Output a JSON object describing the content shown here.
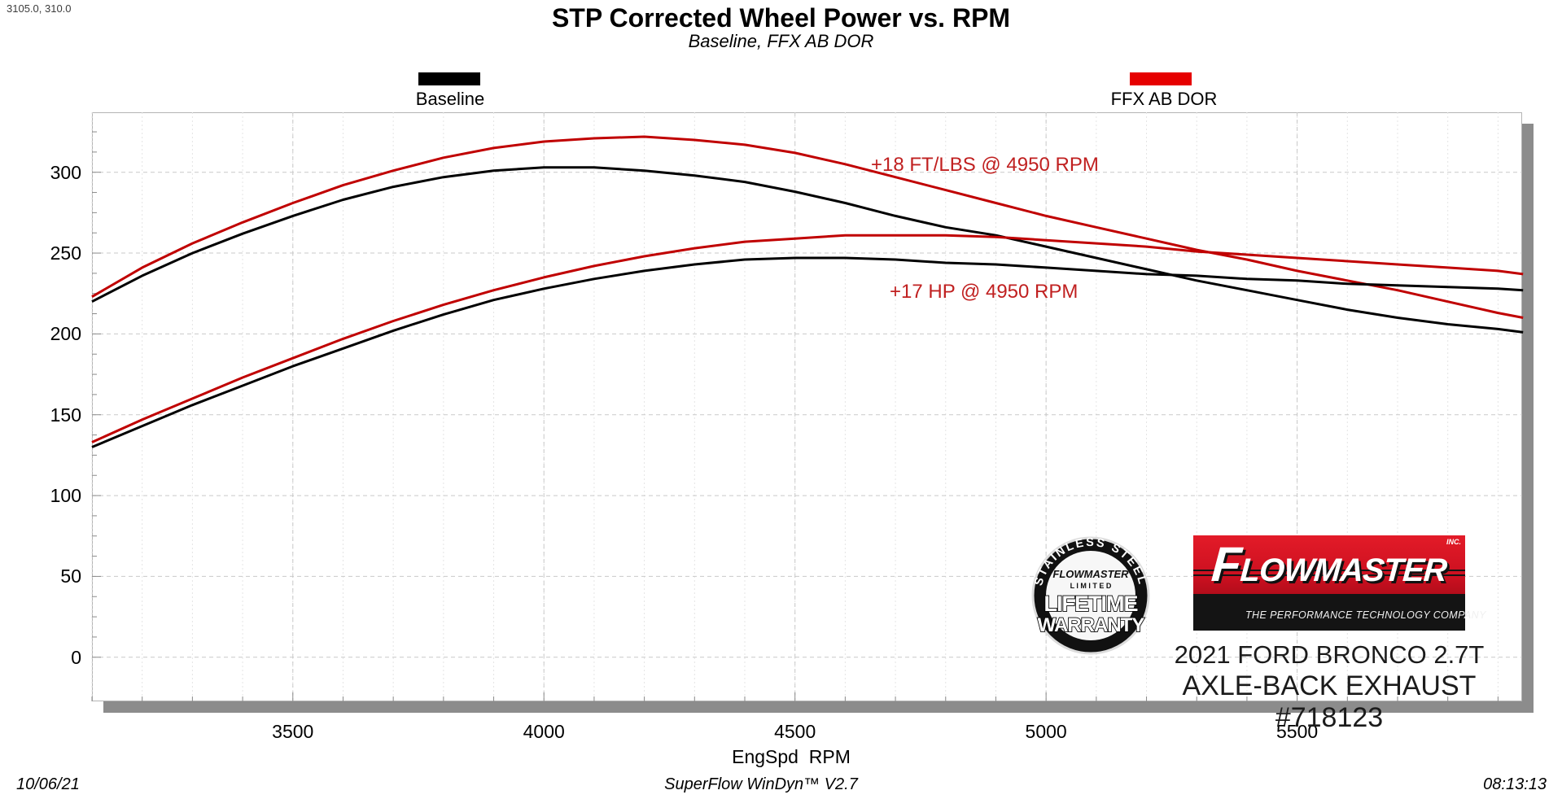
{
  "readout": "3105.0, 310.0",
  "header": {
    "title": "STP Corrected Wheel Power vs. RPM",
    "subtitle": "Baseline, FFX AB DOR"
  },
  "legend": {
    "baseline": {
      "label": "Baseline",
      "color": "#000000"
    },
    "ffx": {
      "label": "FFX AB DOR",
      "color": "#e60000"
    }
  },
  "annotations": {
    "torque": {
      "text": "+18 FT/LBS @ 4950 RPM"
    },
    "power": {
      "text": "+17 HP @ 4950 RPM"
    }
  },
  "branding": {
    "badge": {
      "arc_text": "STAINLESS STEEL",
      "brand": "FLOWMASTER",
      "limited": "L I M I T E D",
      "line1": "LIFETIME",
      "line2": "WARRANTY"
    },
    "logo": {
      "name": "FLOWMASTER",
      "inc": "INC.",
      "tagline": "THE PERFORMANCE TECHNOLOGY COMPANY",
      "red": "#cc1020",
      "black": "#141414"
    },
    "vehicle_line1": "2021 FORD BRONCO 2.7T",
    "vehicle_line2": "AXLE-BACK EXHAUST #718123"
  },
  "footer": {
    "date": "10/06/21",
    "app": "SuperFlow WinDyn™ V2.7",
    "time": "08:13:13"
  },
  "chart_data": {
    "type": "line",
    "title": "STP Corrected Wheel Power vs. RPM",
    "subtitle": "Baseline, FFX AB DOR",
    "xlabel": "EngSpd  RPM",
    "ylabel": "",
    "xlim": [
      3100,
      5948
    ],
    "ylim": [
      -27.3,
      337.1
    ],
    "x_ticks": [
      3500,
      4000,
      4500,
      5000,
      5500
    ],
    "y_ticks": [
      0,
      50,
      100,
      150,
      200,
      250,
      300
    ],
    "x_minor_step": 100,
    "y_minor_step": 12.5,
    "grid": true,
    "legend_position": "top",
    "colors": {
      "baseline": "#000000",
      "ffx": "#c00000",
      "grid_major": "#c9c9c9",
      "grid_minor": "#e4e4e4"
    },
    "x": [
      3100,
      3200,
      3300,
      3400,
      3500,
      3600,
      3700,
      3800,
      3900,
      4000,
      4100,
      4200,
      4300,
      4400,
      4500,
      4600,
      4700,
      4800,
      4900,
      5000,
      5100,
      5200,
      5300,
      5400,
      5500,
      5600,
      5700,
      5800,
      5900,
      5950
    ],
    "series": [
      {
        "name": "Baseline Torque (ft-lbs)",
        "color": "#000000",
        "values": [
          220,
          236,
          250,
          262,
          273,
          283,
          291,
          297,
          301,
          303,
          303,
          301,
          298,
          294,
          288,
          281,
          273,
          266,
          261,
          254,
          247,
          240,
          233,
          227,
          221,
          215,
          210,
          206,
          203,
          201
        ]
      },
      {
        "name": "FFX AB DOR Torque (ft-lbs)",
        "color": "#c00000",
        "values": [
          223,
          241,
          256,
          269,
          281,
          292,
          301,
          309,
          315,
          319,
          321,
          322,
          320,
          317,
          312,
          305,
          297,
          289,
          281,
          273,
          266,
          259,
          252,
          246,
          239,
          233,
          227,
          220,
          213,
          210
        ]
      },
      {
        "name": "Baseline Power (HP)",
        "color": "#000000",
        "values": [
          130,
          143,
          156,
          168,
          180,
          191,
          202,
          212,
          221,
          228,
          234,
          239,
          243,
          246,
          247,
          247,
          246,
          244,
          243,
          241,
          239,
          237,
          236,
          234,
          233,
          231,
          230,
          229,
          228,
          227
        ]
      },
      {
        "name": "FFX AB DOR Power (HP)",
        "color": "#c00000",
        "values": [
          133,
          147,
          160,
          173,
          185,
          197,
          208,
          218,
          227,
          235,
          242,
          248,
          253,
          257,
          259,
          261,
          261,
          261,
          260,
          258,
          256,
          254,
          251,
          249,
          247,
          245,
          243,
          241,
          239,
          237
        ]
      }
    ]
  }
}
